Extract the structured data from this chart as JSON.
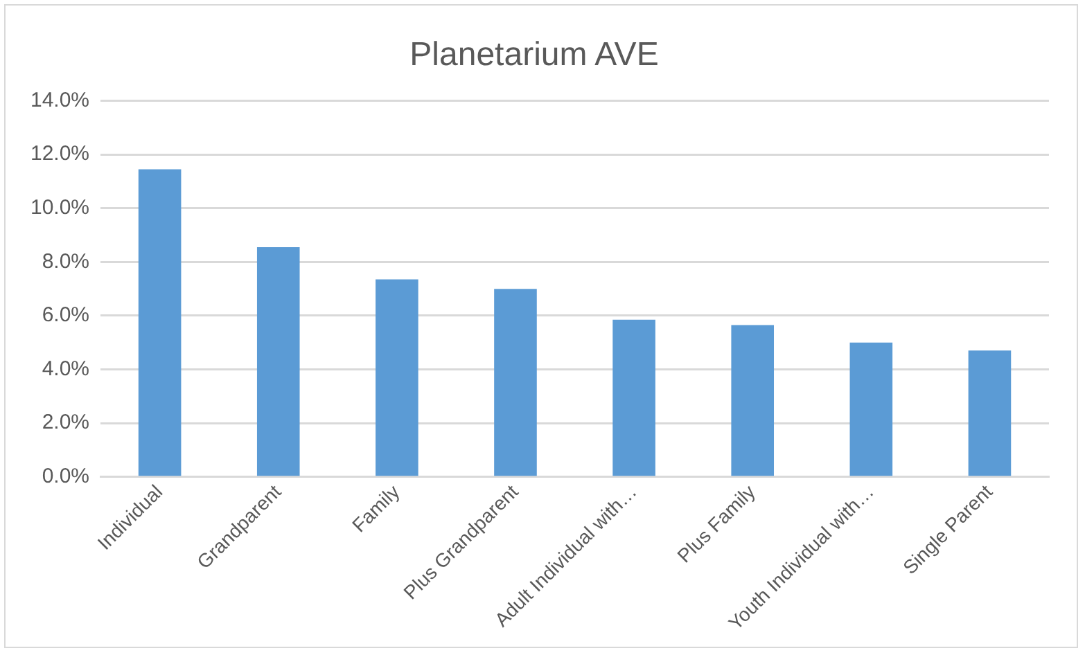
{
  "chart_data": {
    "type": "bar",
    "title": "Planetarium AVE",
    "categories": [
      "Individual",
      "Grandparent",
      "Family",
      "Plus Grandparent",
      "Adult Individual with…",
      "Plus Family",
      "Youth Individual with…",
      "Single Parent"
    ],
    "values": [
      11.45,
      8.55,
      7.35,
      7.0,
      5.85,
      5.65,
      5.0,
      4.7
    ],
    "color": "#5b9bd5",
    "ylim": [
      0,
      14
    ],
    "yticks": [
      {
        "value": 0,
        "label": "0.0%"
      },
      {
        "value": 2,
        "label": "2.0%"
      },
      {
        "value": 4,
        "label": "4.0%"
      },
      {
        "value": 6,
        "label": "6.0%"
      },
      {
        "value": 8,
        "label": "8.0%"
      },
      {
        "value": 10,
        "label": "10.0%"
      },
      {
        "value": 12,
        "label": "12.0%"
      },
      {
        "value": 14,
        "label": "14.0%"
      }
    ],
    "grid": "y",
    "legend": false
  }
}
